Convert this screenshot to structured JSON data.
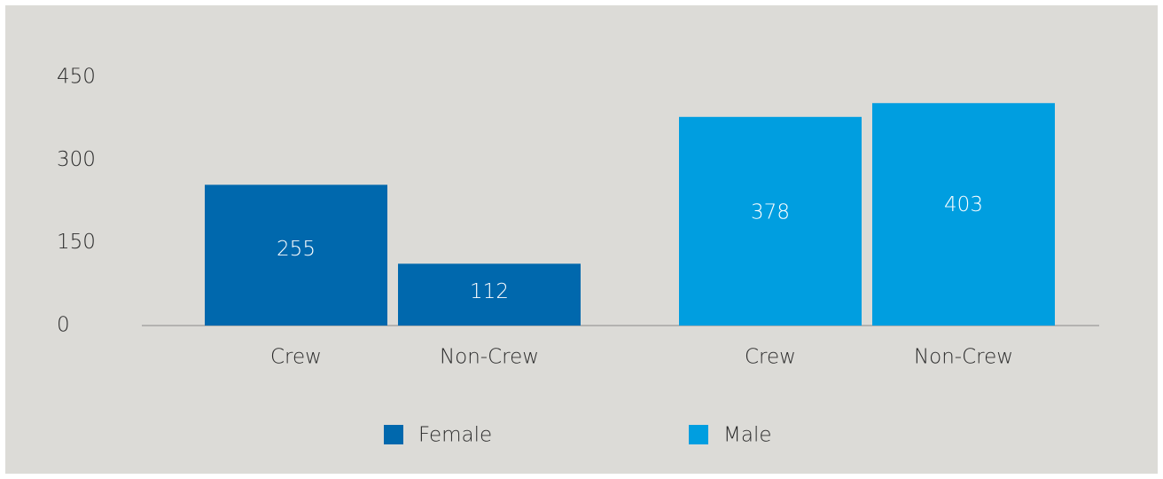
{
  "chart_data": {
    "type": "bar",
    "categories": [
      "Crew",
      "Non-Crew"
    ],
    "series": [
      {
        "name": "Female",
        "color": "#0068ad",
        "values": [
          255,
          112
        ]
      },
      {
        "name": "Male",
        "color": "#009ee0",
        "values": [
          378,
          403
        ]
      }
    ],
    "ylim": [
      0,
      450
    ],
    "yticks": [
      0,
      150,
      300,
      450
    ],
    "grid": false
  }
}
